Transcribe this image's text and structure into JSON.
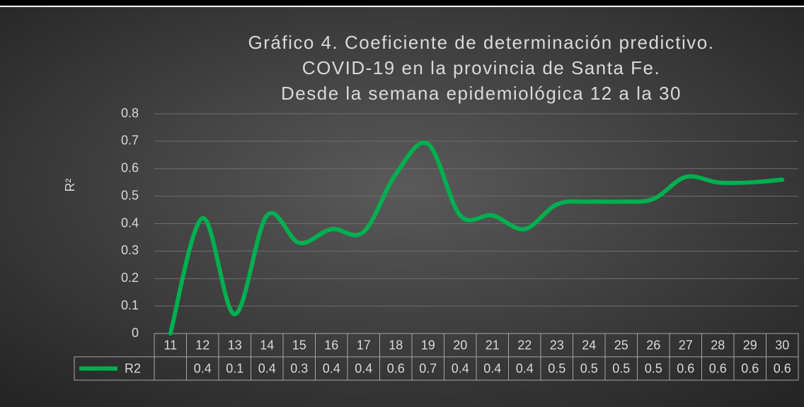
{
  "chart_data": {
    "type": "line",
    "title": [
      "Gráfico 4. Coeficiente de determinación predictivo.",
      "COVID-19 en la provincia de Santa Fe.",
      "Desde la semana epidemiológica 12 a la 30"
    ],
    "y_label": "R²",
    "categories": [
      "11",
      "12",
      "13",
      "14",
      "15",
      "16",
      "17",
      "18",
      "19",
      "20",
      "21",
      "22",
      "23",
      "24",
      "25",
      "26",
      "27",
      "28",
      "29",
      "30"
    ],
    "series": [
      {
        "name": "R2",
        "color": "#00b050",
        "values": [
          0,
          0.42,
          0.07,
          0.43,
          0.33,
          0.38,
          0.37,
          0.58,
          0.69,
          0.43,
          0.43,
          0.38,
          0.47,
          0.48,
          0.48,
          0.49,
          0.57,
          0.55,
          0.55,
          0.56
        ],
        "value_labels": [
          null,
          "0.4",
          "0.1",
          "0.4",
          "0.3",
          "0.4",
          "0.4",
          "0.6",
          "0.7",
          "0.4",
          "0.4",
          "0.4",
          "0.5",
          "0.5",
          "0.5",
          "0.5",
          "0.6",
          "0.6",
          "0.6",
          "0.6"
        ]
      }
    ],
    "ylim": [
      0,
      0.8
    ],
    "yticks": [
      0,
      0.1,
      0.2,
      0.3,
      0.4,
      0.5,
      0.6,
      0.7,
      0.8
    ],
    "grid": true,
    "smooth": true
  }
}
